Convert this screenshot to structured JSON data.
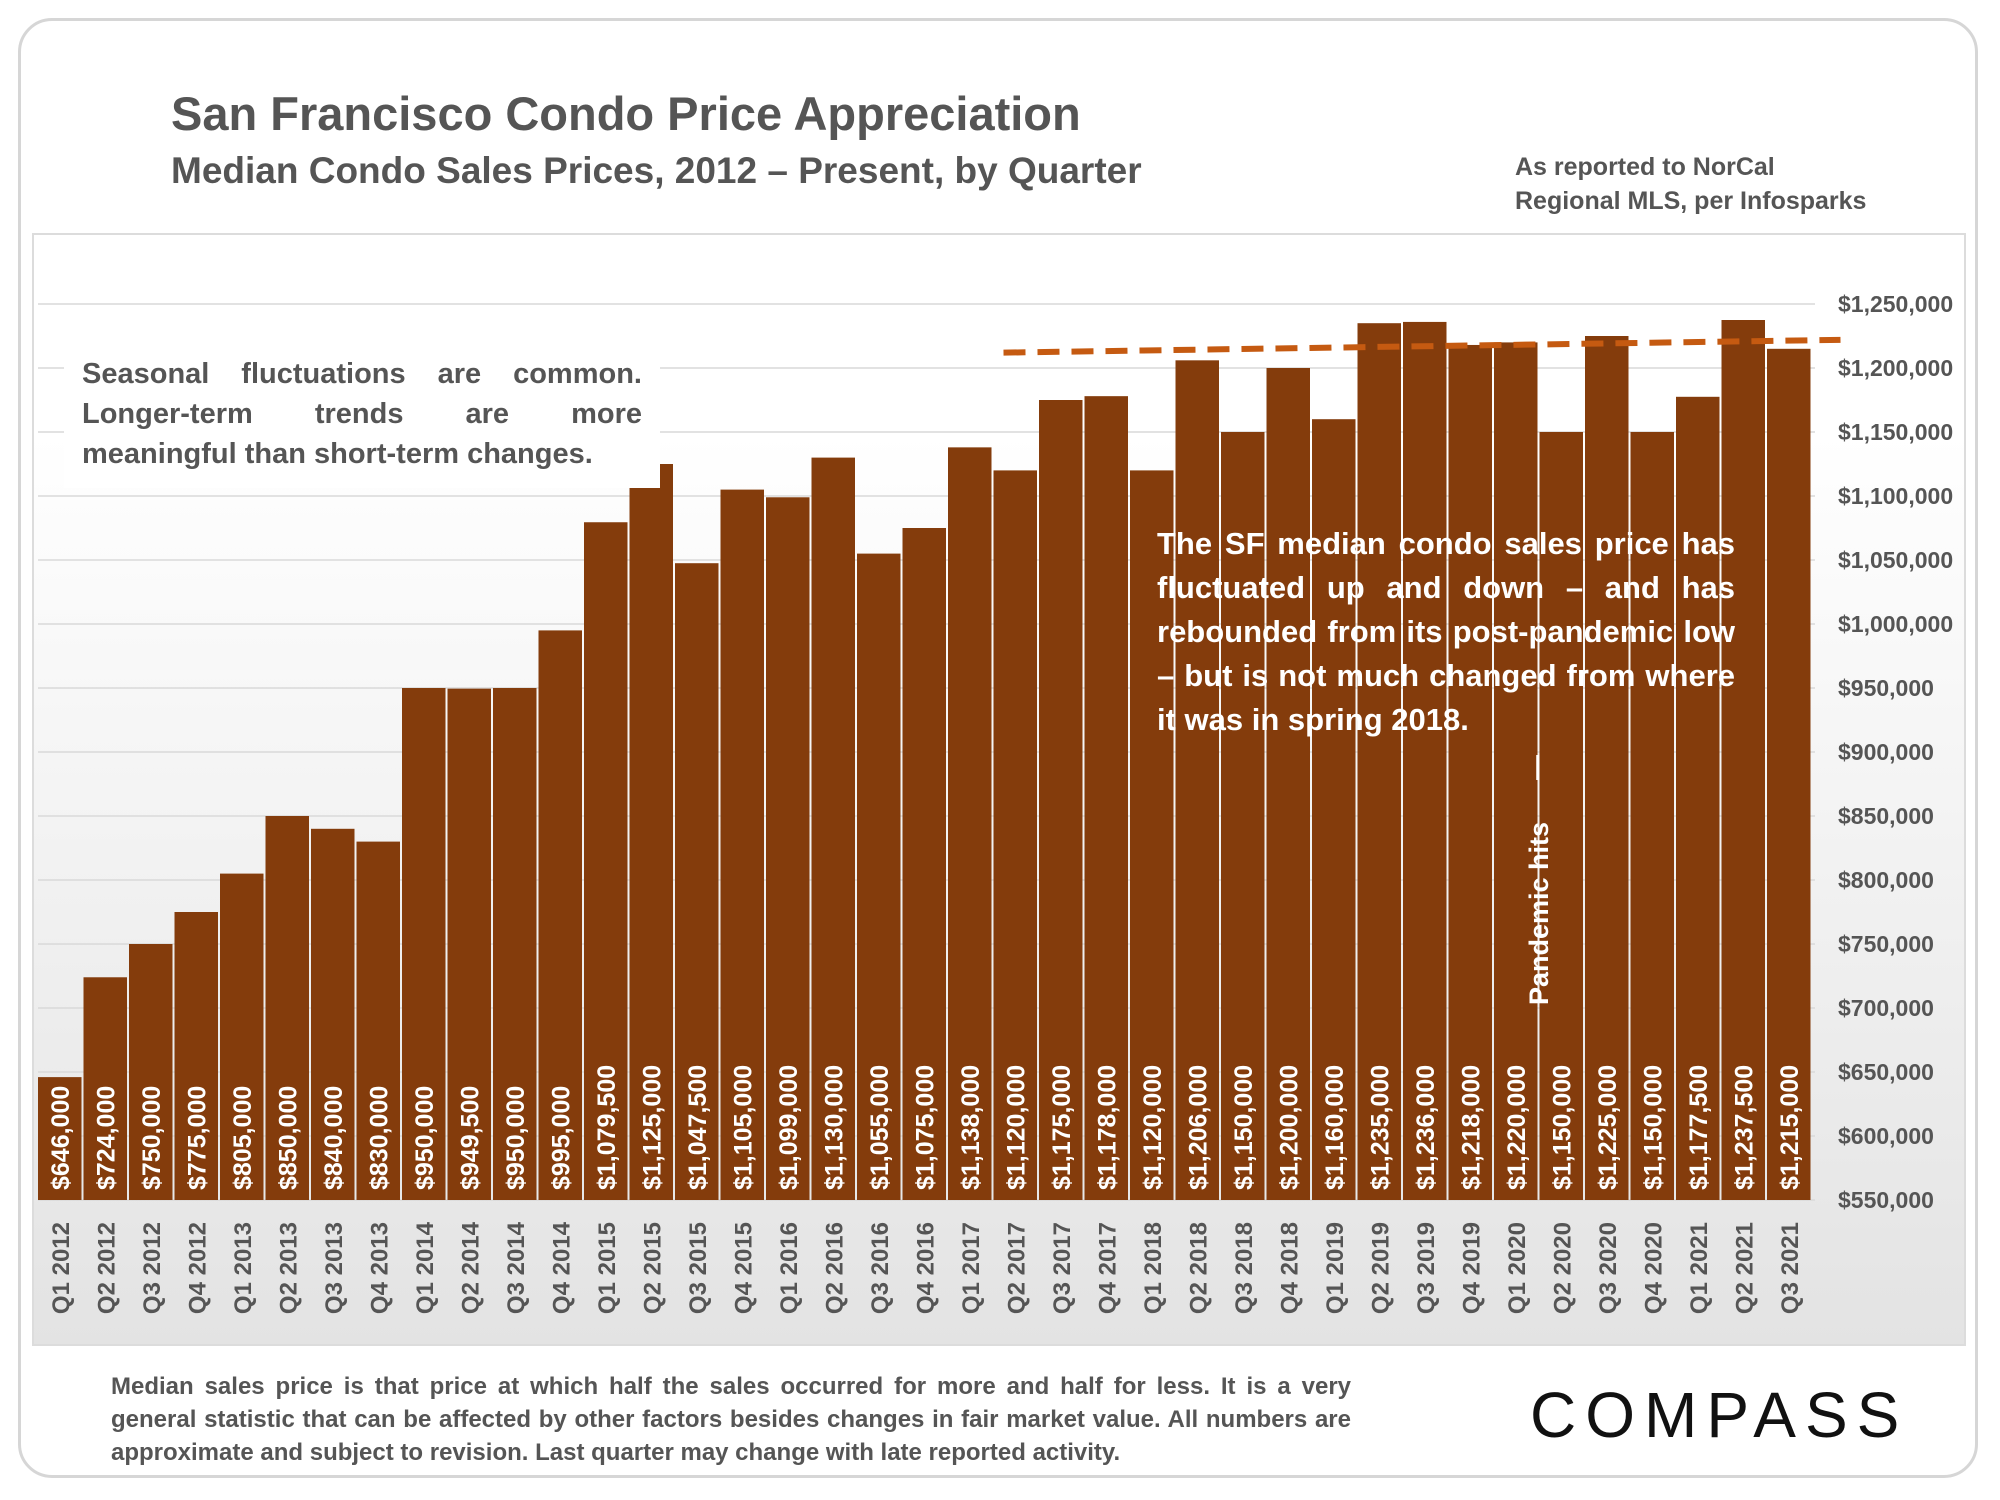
{
  "header": {
    "title": "San Francisco Condo Price Appreciation",
    "subtitle": "Median Condo Sales Prices, 2012 – Present, by Quarter",
    "source_line1": "As reported to NorCal",
    "source_line2": "Regional MLS, per Infosparks"
  },
  "annotations": {
    "left_note": "Seasonal fluctuations are common. Longer-term trends are more meaningful than short-term changes.",
    "right_note": "The SF median condo sales price has fluctuated up and down – and has rebounded from its post-pandemic low – but is not much changed from where it was in spring 2018.",
    "pandemic_label": "Pandemic hits"
  },
  "footer": {
    "footnote": "Median sales price is that price at which half the sales occurred for more and half for less. It is a very general statistic that can be affected by other factors besides changes in fair market value. All numbers are approximate and subject to revision. Last quarter may change with late reported activity.",
    "logo": "COMPASS"
  },
  "colors": {
    "bar": "#843c0c",
    "trend_line": "#c55a11",
    "text": "#555555",
    "gridline": "#d9d9d9"
  },
  "chart_data": {
    "type": "bar",
    "title": "San Francisco Condo Price Appreciation",
    "subtitle": "Median Condo Sales Prices, 2012 – Present, by Quarter",
    "categories": [
      "Q1 2012",
      "Q2 2012",
      "Q3 2012",
      "Q4 2012",
      "Q1 2013",
      "Q2 2013",
      "Q3 2013",
      "Q4 2013",
      "Q1 2014",
      "Q2 2014",
      "Q3 2014",
      "Q4 2014",
      "Q1 2015",
      "Q2 2015",
      "Q3 2015",
      "Q4 2015",
      "Q1 2016",
      "Q2 2016",
      "Q3 2016",
      "Q4 2016",
      "Q1 2017",
      "Q2 2017",
      "Q3 2017",
      "Q4 2017",
      "Q1 2018",
      "Q2 2018",
      "Q3 2018",
      "Q4 2018",
      "Q1 2019",
      "Q2 2019",
      "Q3 2019",
      "Q4 2019",
      "Q1 2020",
      "Q2 2020",
      "Q3 2020",
      "Q4 2020",
      "Q1 2021",
      "Q2 2021",
      "Q3 2021"
    ],
    "values": [
      646000,
      724000,
      750000,
      775000,
      805000,
      850000,
      840000,
      830000,
      950000,
      949500,
      950000,
      995000,
      1079500,
      1125000,
      1047500,
      1105000,
      1099000,
      1130000,
      1055000,
      1075000,
      1138000,
      1120000,
      1175000,
      1178000,
      1120000,
      1206000,
      1150000,
      1200000,
      1160000,
      1235000,
      1236000,
      1218000,
      1220000,
      1150000,
      1225000,
      1150000,
      1177500,
      1237500,
      1215000
    ],
    "data_labels": [
      "$646,000",
      "$724,000",
      "$750,000",
      "$775,000",
      "$805,000",
      "$850,000",
      "$840,000",
      "$830,000",
      "$950,000",
      "$949,500",
      "$950,000",
      "$995,000",
      "$1,079,500",
      "$1,125,000",
      "$1,047,500",
      "$1,105,000",
      "$1,099,000",
      "$1,130,000",
      "$1,055,000",
      "$1,075,000",
      "$1,138,000",
      "$1,120,000",
      "$1,175,000",
      "$1,178,000",
      "$1,120,000",
      "$1,206,000",
      "$1,150,000",
      "$1,200,000",
      "$1,160,000",
      "$1,235,000",
      "$1,236,000",
      "$1,218,000",
      "$1,220,000",
      "$1,150,000",
      "$1,225,000",
      "$1,150,000",
      "$1,177,500",
      "$1,237,500",
      "$1,215,000"
    ],
    "ylim": [
      550000,
      1250000
    ],
    "yticks": [
      550000,
      600000,
      650000,
      700000,
      750000,
      800000,
      850000,
      900000,
      950000,
      1000000,
      1050000,
      1100000,
      1150000,
      1200000,
      1250000
    ],
    "ytick_labels": [
      "$550,000",
      "$600,000",
      "$650,000",
      "$700,000",
      "$750,000",
      "$800,000",
      "$850,000",
      "$900,000",
      "$950,000",
      "$1,000,000",
      "$1,050,000",
      "$1,100,000",
      "$1,150,000",
      "$1,200,000",
      "$1,250,000"
    ],
    "y_axis_side": "right",
    "grid": true,
    "trend_line": {
      "style": "dashed",
      "from_category": "Q2 2017",
      "to_category": "Q3 2021",
      "from_value": 1212000,
      "to_value": 1222000
    },
    "pandemic_marker": {
      "category": "Q1 2020",
      "label": "Pandemic hits"
    }
  }
}
